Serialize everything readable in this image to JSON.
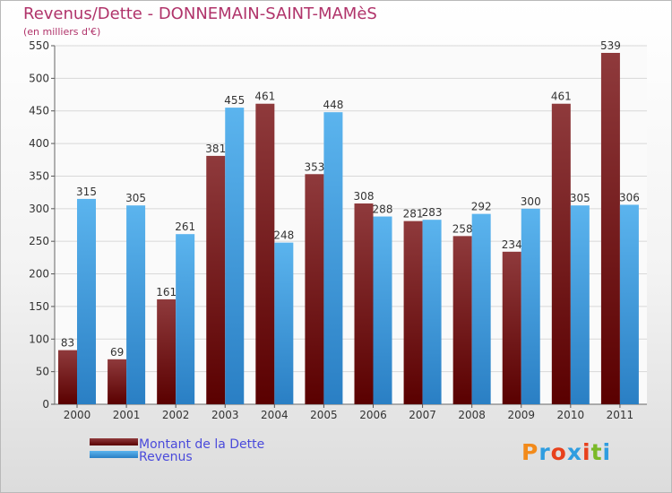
{
  "chart_data": {
    "type": "bar",
    "title": "Revenus/Dette - DONNEMAIN-SAINT-MAMèS",
    "subtitle": "(en milliers d'€)",
    "categories": [
      "2000",
      "2001",
      "2002",
      "2003",
      "2004",
      "2005",
      "2006",
      "2007",
      "2008",
      "2009",
      "2010",
      "2011"
    ],
    "series": [
      {
        "name": "Montant de la Dette",
        "color": "#7a1a1f",
        "values": [
          83,
          69,
          161,
          381,
          461,
          353,
          308,
          281,
          258,
          234,
          461,
          539
        ]
      },
      {
        "name": "Revenus",
        "color": "#4ea6e6",
        "values": [
          315,
          305,
          261,
          455,
          248,
          448,
          288,
          283,
          292,
          300,
          305,
          306
        ]
      }
    ],
    "ylim": [
      0,
      550
    ],
    "yticks": [
      0,
      50,
      100,
      150,
      200,
      250,
      300,
      350,
      400,
      450,
      500,
      550
    ],
    "grid": true,
    "legend": "bottom-left"
  },
  "legend": {
    "label_color": "#4a4adb"
  },
  "logo": {
    "text": "Proxiti",
    "letters": [
      "P",
      "r",
      "o",
      "x",
      "i",
      "t",
      "i"
    ]
  }
}
